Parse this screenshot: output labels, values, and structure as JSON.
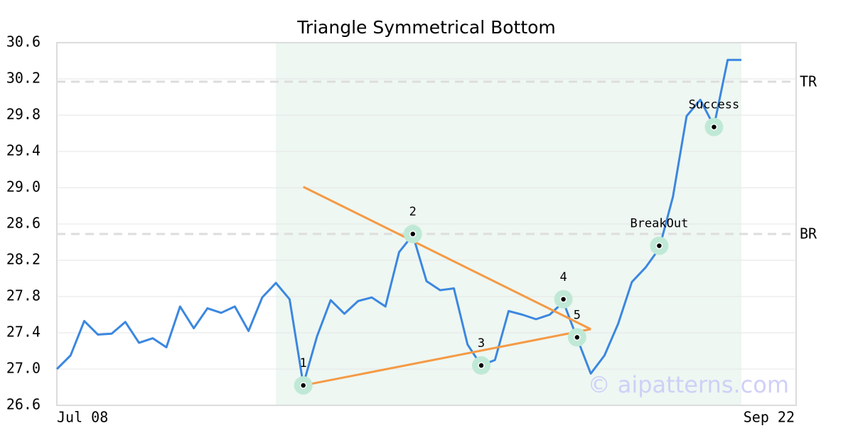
{
  "chart_data": {
    "type": "line",
    "title": "Triangle Symmetrical Bottom",
    "x": [
      0,
      1,
      2,
      3,
      4,
      5,
      6,
      7,
      8,
      9,
      10,
      11,
      12,
      13,
      14,
      15,
      16,
      17,
      18,
      19,
      20,
      21,
      22,
      23,
      24,
      25,
      26,
      27,
      28,
      29,
      30,
      31,
      32,
      33,
      34,
      35,
      36,
      37,
      38,
      39,
      40,
      41,
      42,
      43,
      44,
      45,
      46,
      47,
      48,
      49,
      50
    ],
    "values": [
      27.0,
      27.15,
      27.53,
      27.38,
      27.39,
      27.52,
      27.29,
      27.34,
      27.24,
      27.69,
      27.45,
      27.67,
      27.62,
      27.69,
      27.42,
      27.79,
      27.95,
      27.77,
      26.83,
      27.36,
      27.76,
      27.61,
      27.75,
      27.79,
      27.69,
      28.29,
      28.48,
      27.97,
      27.87,
      27.89,
      27.27,
      27.04,
      27.1,
      27.64,
      27.6,
      27.55,
      27.6,
      27.74,
      27.34,
      26.95,
      27.15,
      27.5,
      27.96,
      28.12,
      28.33,
      28.9,
      29.79,
      29.97,
      29.68,
      30.41,
      30.41
    ],
    "color": "#3b87e0",
    "xlim": [
      0,
      54
    ],
    "xticks": [
      {
        "value": 0,
        "label": "Jul 08"
      },
      {
        "value": 54,
        "label": "Sep 22"
      }
    ],
    "ylim": [
      26.6,
      30.6
    ],
    "yticks": [
      {
        "value": 26.6,
        "label": "26.6"
      },
      {
        "value": 27.0,
        "label": "27.0"
      },
      {
        "value": 27.4,
        "label": "27.4"
      },
      {
        "value": 27.8,
        "label": "27.8"
      },
      {
        "value": 28.2,
        "label": "28.2"
      },
      {
        "value": 28.6,
        "label": "28.6"
      },
      {
        "value": 29.0,
        "label": "29.0"
      },
      {
        "value": 29.4,
        "label": "29.4"
      },
      {
        "value": 29.8,
        "label": "29.8"
      },
      {
        "value": 30.2,
        "label": "30.2"
      },
      {
        "value": 30.6,
        "label": "30.6"
      }
    ],
    "grid": true,
    "highlight": [
      16,
      50
    ],
    "highlight_color": "#eef7f2",
    "levels": [
      {
        "label": "TR",
        "value": 30.17
      },
      {
        "label": "BR",
        "value": 28.49
      }
    ],
    "triangle_color": "#f59a45",
    "triangle": [
      {
        "x": [
          18,
          39
        ],
        "values": [
          29.01,
          27.44
        ]
      },
      {
        "x": [
          18,
          39
        ],
        "values": [
          26.82,
          27.44
        ]
      }
    ],
    "point_color": "#bfe9d6",
    "points": [
      {
        "label": "1",
        "x": 18,
        "value": 26.82
      },
      {
        "label": "2",
        "x": 26,
        "value": 28.49
      },
      {
        "label": "3",
        "x": 31,
        "value": 27.04
      },
      {
        "label": "4",
        "x": 37,
        "value": 27.77
      },
      {
        "label": "5",
        "x": 38,
        "value": 27.35
      },
      {
        "label": "BreakOut",
        "x": 44,
        "value": 28.36
      },
      {
        "label": "Success",
        "x": 48,
        "value": 29.67
      }
    ],
    "watermark": "© aipatterns.com"
  }
}
